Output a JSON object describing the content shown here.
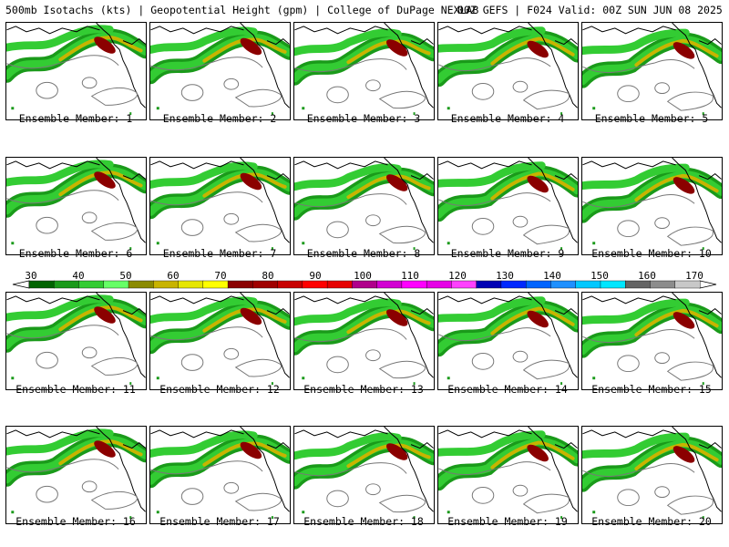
{
  "header": {
    "left": "500mb Isotachs (kts) | Geopotential Height (gpm) | College of DuPage NEXLAB",
    "right": "00Z GEFS | F024 Valid: 00Z SUN JUN 08 2025"
  },
  "members": [
    {
      "label": "Ensemble Member: 1"
    },
    {
      "label": "Ensemble Member: 2"
    },
    {
      "label": "Ensemble Member: 3"
    },
    {
      "label": "Ensemble Member: 4"
    },
    {
      "label": "Ensemble Member: 5"
    },
    {
      "label": "Ensemble Member: 6"
    },
    {
      "label": "Ensemble Member: 7"
    },
    {
      "label": "Ensemble Member: 8"
    },
    {
      "label": "Ensemble Member: 9"
    },
    {
      "label": "Ensemble Member: 10"
    },
    {
      "label": "Ensemble Member: 11"
    },
    {
      "label": "Ensemble Member: 12"
    },
    {
      "label": "Ensemble Member: 13"
    },
    {
      "label": "Ensemble Member: 14"
    },
    {
      "label": "Ensemble Member: 15"
    },
    {
      "label": "Ensemble Member: 16"
    },
    {
      "label": "Ensemble Member: 17"
    },
    {
      "label": "Ensemble Member: 18"
    },
    {
      "label": "Ensemble Member: 19"
    },
    {
      "label": "Ensemble Member: 20"
    }
  ],
  "legend": {
    "ticks": [
      "30",
      "40",
      "50",
      "60",
      "70",
      "80",
      "90",
      "100",
      "110",
      "120",
      "130",
      "140",
      "150",
      "160",
      "170"
    ],
    "colors": [
      "#006400",
      "#1a9a1a",
      "#33cc33",
      "#66ff66",
      "#8b8b00",
      "#c8b400",
      "#e6e600",
      "#ffff00",
      "#8b0000",
      "#a00000",
      "#c80000",
      "#ff0000",
      "#e60000",
      "#b0008b",
      "#d200d2",
      "#ff00ff",
      "#e600e6",
      "#ff40ff",
      "#0000b4",
      "#0028ff",
      "#0064ff",
      "#1e90ff",
      "#00c8ff",
      "#00e6ff",
      "#646464",
      "#8c8c8c",
      "#c8c8c8"
    ]
  }
}
